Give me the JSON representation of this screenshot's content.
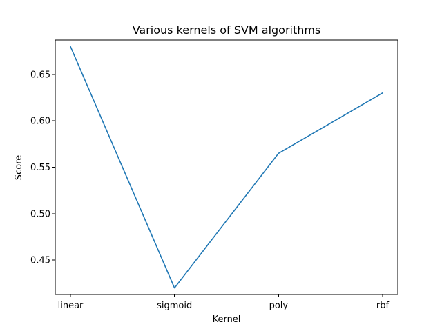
{
  "chart_data": {
    "type": "line",
    "title": "Various kernels of SVM algorithms",
    "xlabel": "Kernel",
    "ylabel": "Score",
    "categories": [
      "linear",
      "sigmoid",
      "poly",
      "rbf"
    ],
    "series": [
      {
        "values": [
          0.68,
          0.42,
          0.565,
          0.63
        ],
        "color": "#1f77b4"
      }
    ],
    "ylim": [
      0.413,
      0.687
    ],
    "yticks": [
      0.45,
      0.5,
      0.55,
      0.6,
      0.65
    ],
    "ytick_labels": [
      "0.45",
      "0.50",
      "0.55",
      "0.60",
      "0.65"
    ],
    "grid": false,
    "legend": "none"
  }
}
